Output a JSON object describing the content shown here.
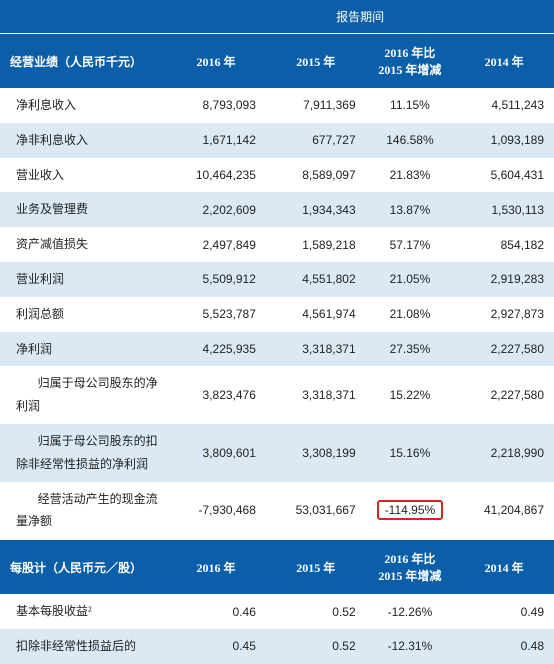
{
  "header_title": "报告期间",
  "section1": {
    "title": "经营业绩（人民币千元）",
    "cols": [
      "2016 年",
      "2015 年",
      "2016 年比\n2015 年增减",
      "2014 年"
    ]
  },
  "rows1": [
    {
      "label": "净利息收入",
      "c1": "8,793,093",
      "c2": "7,911,369",
      "c3": "11.15%",
      "c4": "4,511,243"
    },
    {
      "label": "净非利息收入",
      "c1": "1,671,142",
      "c2": "677,727",
      "c3": "146.58%",
      "c4": "1,093,189"
    },
    {
      "label": "营业收入",
      "c1": "10,464,235",
      "c2": "8,589,097",
      "c3": "21.83%",
      "c4": "5,604,431"
    },
    {
      "label": "业务及管理费",
      "c1": "2,202,609",
      "c2": "1,934,343",
      "c3": "13.87%",
      "c4": "1,530,113"
    },
    {
      "label": "资产减值损失",
      "c1": "2,497,849",
      "c2": "1,589,218",
      "c3": "57.17%",
      "c4": "854,182"
    },
    {
      "label": "营业利润",
      "c1": "5,509,912",
      "c2": "4,551,802",
      "c3": "21.05%",
      "c4": "2,919,283"
    },
    {
      "label": "利润总额",
      "c1": "5,523,787",
      "c2": "4,561,974",
      "c3": "21.08%",
      "c4": "2,927,873"
    },
    {
      "label": "净利润",
      "c1": "4,225,935",
      "c2": "3,318,371",
      "c3": "27.35%",
      "c4": "2,227,580"
    },
    {
      "label": "归属于母公司股东的净利润",
      "wrap": true,
      "l1": "归属于母公司股东的净",
      "l2": "利润",
      "c1": "3,823,476",
      "c2": "3,318,371",
      "c3": "15.22%",
      "c4": "2,227,580"
    },
    {
      "label": "归属于母公司股东的扣除非经常性损益的净利润",
      "wrap": true,
      "l1": "归属于母公司股东的扣",
      "l2": "除非经常性损益的净利润",
      "c1": "3,809,601",
      "c2": "3,308,199",
      "c3": "15.16%",
      "c4": "2,218,990"
    },
    {
      "label": "经营活动产生的现金流量净额",
      "wrap": true,
      "l1": "经营活动产生的现金流",
      "l2": "量净额",
      "c1": "-7,930,468",
      "c2": "53,031,667",
      "c3": "-114.95%",
      "c4": "41,204,867",
      "hl": true
    }
  ],
  "section2": {
    "title": "每股计（人民币元／股）",
    "cols": [
      "2016 年",
      "2015 年",
      "2016 年比\n2015 年增减",
      "2014 年"
    ]
  },
  "rows2": [
    {
      "label": "基本每股收益²",
      "c1": "0.46",
      "c2": "0.52",
      "c3": "-12.26%",
      "c4": "0.49"
    },
    {
      "label": "扣除非经常性损益后的",
      "c1": "0.45",
      "c2": "0.52",
      "c3": "-12.31%",
      "c4": "0.48"
    }
  ],
  "colors": {
    "band": "#0b5ea8",
    "band_text": "#ffffff",
    "row_even": "#dbe9f4",
    "row_odd": "#ffffff",
    "highlight_border": "#e02020"
  }
}
